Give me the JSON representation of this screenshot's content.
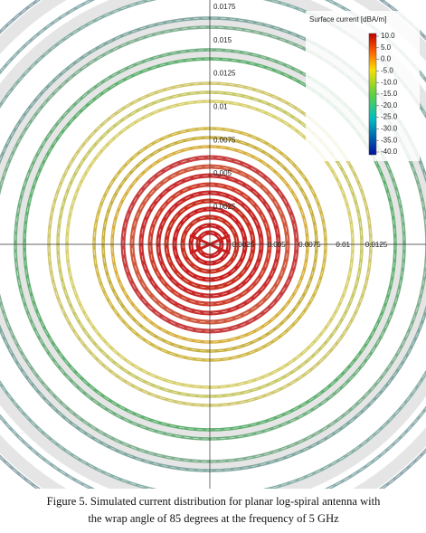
{
  "figure": {
    "y_ticks": [
      "0.0175",
      "0.015",
      "0.0125",
      "0.01",
      "0.0075",
      "0.005",
      "0.0025"
    ],
    "x_ticks": [
      "0.0025",
      "0.005",
      "0.0075",
      "0.01",
      "0.0125"
    ],
    "legend": {
      "title": "Surface current [dBA/m]",
      "ticks": [
        "10.0",
        "5.0",
        "0.0",
        "-5.0",
        "-10.0",
        "-15.0",
        "-20.0",
        "-25.0",
        "-30.0",
        "-35.0",
        "-40.0"
      ]
    }
  },
  "caption": [
    "Figure 5.   Simulated current distribution for planar log-spiral antenna with",
    "the wrap angle of 85 degrees at the frequency of 5 GHz"
  ]
}
